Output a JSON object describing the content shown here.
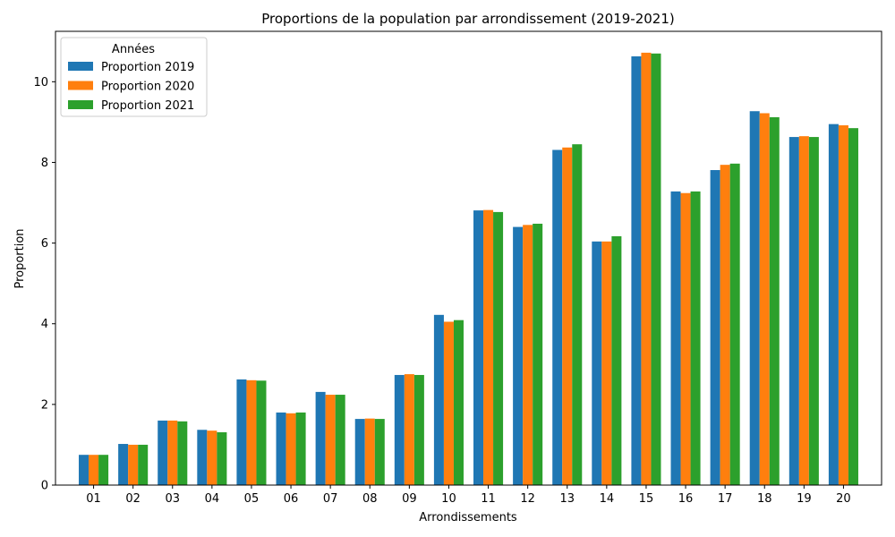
{
  "chart_data": {
    "type": "bar",
    "title": "Proportions de la population par arrondissement (2019-2021)",
    "xlabel": "Arrondissements",
    "ylabel": "Proportion",
    "ylim": [
      0,
      11.25
    ],
    "yticks": [
      0,
      2,
      4,
      6,
      8,
      10
    ],
    "categories": [
      "01",
      "02",
      "03",
      "04",
      "05",
      "06",
      "07",
      "08",
      "09",
      "10",
      "11",
      "12",
      "13",
      "14",
      "15",
      "16",
      "17",
      "18",
      "19",
      "20"
    ],
    "legend": {
      "title": "Années",
      "position": "top-left"
    },
    "grid": false,
    "series": [
      {
        "name": "Proportion 2019",
        "color": "#1f77b4",
        "values": [
          0.75,
          1.02,
          1.6,
          1.37,
          2.62,
          1.8,
          2.31,
          1.64,
          2.73,
          4.22,
          6.81,
          6.4,
          8.31,
          6.04,
          10.63,
          7.28,
          7.81,
          9.27,
          8.63,
          8.95
        ]
      },
      {
        "name": "Proportion 2020",
        "color": "#ff7f0e",
        "values": [
          0.75,
          1.0,
          1.6,
          1.35,
          2.6,
          1.78,
          2.24,
          1.65,
          2.75,
          4.05,
          6.82,
          6.45,
          8.37,
          6.04,
          10.72,
          7.24,
          7.94,
          9.22,
          8.65,
          8.92
        ]
      },
      {
        "name": "Proportion 2021",
        "color": "#2ca02c",
        "values": [
          0.75,
          1.0,
          1.58,
          1.31,
          2.59,
          1.8,
          2.24,
          1.64,
          2.73,
          4.09,
          6.77,
          6.48,
          8.45,
          6.17,
          10.7,
          7.28,
          7.97,
          9.12,
          8.63,
          8.85
        ]
      }
    ]
  }
}
